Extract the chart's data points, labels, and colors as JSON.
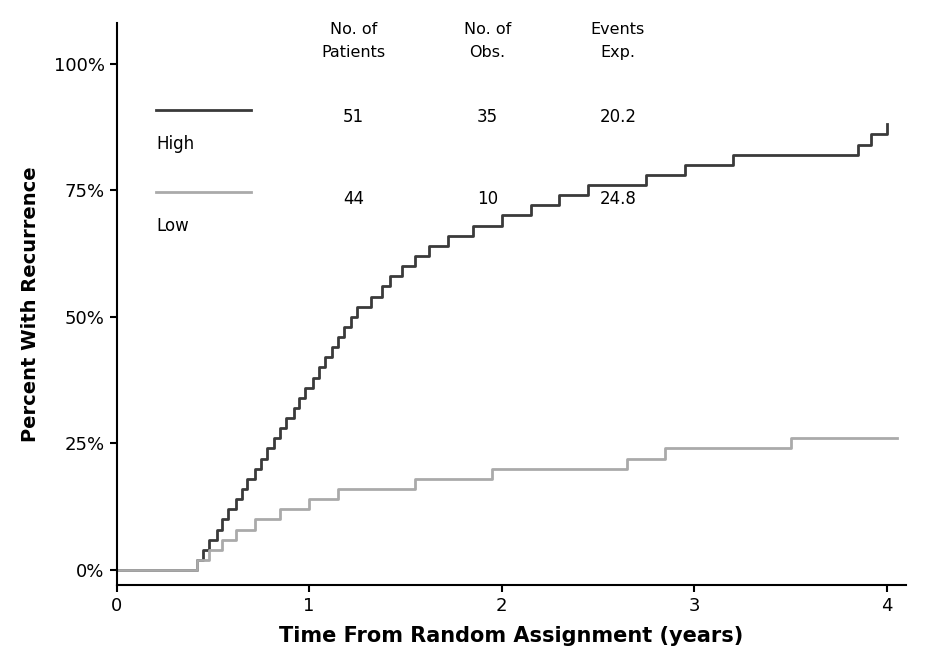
{
  "xlabel": "Time From Random Assignment (years)",
  "ylabel": "Percent With Recurrence",
  "xlim": [
    0,
    4.1
  ],
  "ylim": [
    -0.03,
    1.08
  ],
  "yticks": [
    0,
    0.25,
    0.5,
    0.75,
    1.0
  ],
  "ytick_labels": [
    "0%",
    "25%",
    "50%",
    "75%",
    "100%"
  ],
  "xticks": [
    0,
    1,
    2,
    3,
    4
  ],
  "high_color": "#3a3a3a",
  "low_color": "#aaaaaa",
  "high_linewidth": 2.0,
  "low_linewidth": 2.0,
  "legend_label_high": "High",
  "legend_label_low": "Low",
  "high_patients": "51",
  "high_obs": "35",
  "high_exp": "20.2",
  "low_patients": "44",
  "low_obs": "10",
  "low_exp": "24.8",
  "high_x": [
    0.0,
    0.4,
    0.42,
    0.45,
    0.48,
    0.52,
    0.55,
    0.58,
    0.62,
    0.65,
    0.68,
    0.72,
    0.75,
    0.78,
    0.82,
    0.85,
    0.88,
    0.92,
    0.95,
    0.98,
    1.02,
    1.05,
    1.08,
    1.12,
    1.15,
    1.18,
    1.22,
    1.25,
    1.28,
    1.32,
    1.35,
    1.38,
    1.42,
    1.45,
    1.48,
    1.52,
    1.55,
    1.58,
    1.62,
    1.65,
    1.68,
    1.72,
    1.78,
    1.85,
    1.92,
    2.0,
    2.08,
    2.15,
    2.22,
    2.3,
    2.38,
    2.45,
    2.55,
    2.65,
    2.75,
    2.85,
    2.95,
    3.05,
    3.2,
    3.5,
    3.8,
    3.85,
    3.92,
    4.0
  ],
  "high_y": [
    0.0,
    0.0,
    0.02,
    0.04,
    0.06,
    0.08,
    0.1,
    0.12,
    0.14,
    0.16,
    0.18,
    0.2,
    0.22,
    0.24,
    0.26,
    0.28,
    0.3,
    0.32,
    0.34,
    0.36,
    0.38,
    0.4,
    0.42,
    0.44,
    0.46,
    0.48,
    0.5,
    0.52,
    0.52,
    0.54,
    0.54,
    0.56,
    0.58,
    0.58,
    0.6,
    0.6,
    0.62,
    0.62,
    0.64,
    0.64,
    0.64,
    0.66,
    0.66,
    0.68,
    0.68,
    0.7,
    0.7,
    0.72,
    0.72,
    0.74,
    0.74,
    0.76,
    0.76,
    0.76,
    0.78,
    0.78,
    0.8,
    0.8,
    0.82,
    0.82,
    0.82,
    0.84,
    0.86,
    0.88
  ],
  "low_x": [
    0.0,
    0.4,
    0.42,
    0.48,
    0.55,
    0.62,
    0.72,
    0.85,
    1.0,
    1.15,
    1.35,
    1.55,
    1.75,
    1.95,
    2.15,
    2.35,
    2.55,
    2.65,
    2.75,
    2.85,
    3.0,
    3.2,
    3.5,
    4.05
  ],
  "low_y": [
    0.0,
    0.0,
    0.02,
    0.04,
    0.06,
    0.08,
    0.1,
    0.12,
    0.14,
    0.16,
    0.16,
    0.18,
    0.18,
    0.2,
    0.2,
    0.2,
    0.2,
    0.22,
    0.22,
    0.24,
    0.24,
    0.24,
    0.26,
    0.26
  ]
}
